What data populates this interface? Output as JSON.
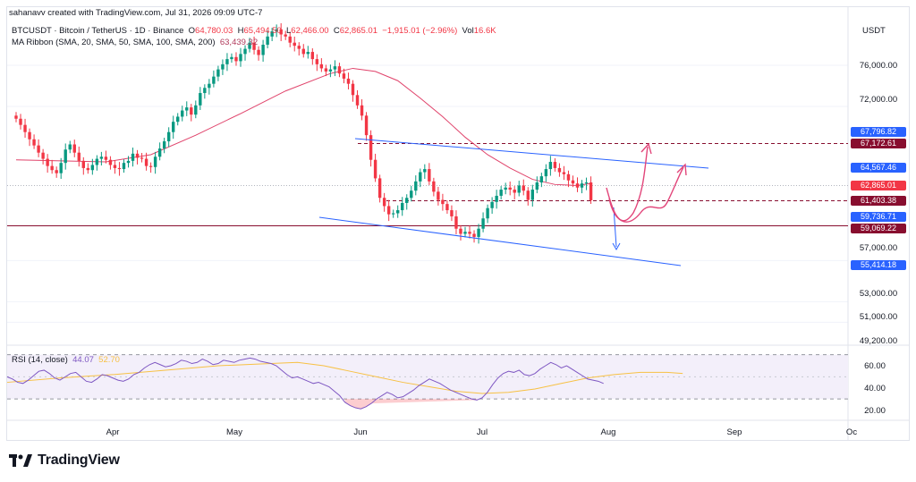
{
  "header": {
    "credit": "sahanavv created with TradingView.com, Jul 31, 2026 09:09 UTC-7",
    "symbol": "BTCUSDT · Bitcoin / TetherUS · 1D · Binance",
    "o_label": "O",
    "o_value": "64,780.03",
    "h_label": "H",
    "h_value": "65,494.50",
    "l_label": "L",
    "l_value": "62,466.00",
    "c_label": "C",
    "c_value": "62,865.01",
    "change": "−1,915.01 (−2.96%)",
    "vol_label": "Vol",
    "vol_value": "16.6K",
    "ma_title": "MA Ribbon (SMA, 20, SMA, 50, SMA, 100, SMA, 200)",
    "ma_value": "63,439.32"
  },
  "currency": "USDT",
  "price_axis": [
    "76,000.00",
    "72,000.00",
    "57,000.00",
    "53,000.00",
    "51,000.00",
    "49,200.00"
  ],
  "price_labels": [
    {
      "text": "67,796.82",
      "color": "#2962ff"
    },
    {
      "text": "67,172.61",
      "color": "#880e2f"
    },
    {
      "text": "64,567.46",
      "color": "#2962ff"
    },
    {
      "text": "62,865.01",
      "color": "#f23645"
    },
    {
      "text": "61,403.38",
      "color": "#880e2f"
    },
    {
      "text": "59,736.71",
      "color": "#2962ff"
    },
    {
      "text": "59,069.22",
      "color": "#880e2f"
    },
    {
      "text": "55,414.18",
      "color": "#2962ff"
    }
  ],
  "months": [
    "Apr",
    "May",
    "Jun",
    "Jul",
    "Aug",
    "Sep",
    "Oc"
  ],
  "rsi": {
    "title": "RSI (14, close)",
    "value": "44.07",
    "ma_value": "52.70",
    "axis": [
      "60.00",
      "40.00",
      "20.00"
    ]
  },
  "brand": "TradingView",
  "colors": {
    "up": "#089981",
    "down": "#f23645",
    "trendline": "#2962ff",
    "ma": "#e0436b",
    "forecast": "#e2457a",
    "rsi": "#7e57c2",
    "rsi_ma": "#f7c144",
    "level": "#880e2f"
  },
  "chart_data": [
    {
      "type": "candlestick",
      "title": "BTCUSDT · Bitcoin / TetherUS · 1D · Binance",
      "x_range": [
        "2026-03-09",
        "2026-10-01"
      ],
      "ylim": [
        48500,
        80500
      ],
      "closes": [
        70800,
        70200,
        69500,
        68800,
        68200,
        67500,
        66900,
        66200,
        65800,
        65500,
        66500,
        67800,
        68300,
        67500,
        66700,
        66000,
        65800,
        66300,
        66900,
        67100,
        66800,
        66300,
        66000,
        65900,
        66500,
        66700,
        67400,
        67000,
        66900,
        66200,
        66100,
        67100,
        67900,
        68600,
        69500,
        70500,
        71000,
        71600,
        71900,
        71200,
        72100,
        73300,
        73800,
        74200,
        74900,
        75600,
        76100,
        76600,
        76800,
        76400,
        77100,
        77600,
        78200,
        77500,
        77000,
        78000,
        78800,
        79300,
        79500,
        79000,
        78800,
        78200,
        77900,
        77600,
        77100,
        77300,
        76600,
        76100,
        75700,
        75400,
        75600,
        75900,
        75200,
        74700,
        74200,
        73100,
        72100,
        71100,
        69200,
        66800,
        65000,
        63100,
        62300,
        61500,
        61600,
        61900,
        62600,
        63100,
        63800,
        64700,
        65600,
        65900,
        64700,
        63700,
        62900,
        62500,
        61900,
        61300,
        60100,
        59600,
        59800,
        59600,
        59300,
        60100,
        61100,
        62100,
        62700,
        63300,
        63900,
        64100,
        63900,
        63600,
        64300,
        63800,
        62900,
        63900,
        64600,
        65200,
        65900,
        66600,
        66000,
        65600,
        65400,
        64800,
        64500,
        64100,
        64500,
        64600,
        62865
      ],
      "ma_line": [
        [
          0,
          66800
        ],
        [
          10,
          66700
        ],
        [
          20,
          66600
        ],
        [
          30,
          67300
        ],
        [
          40,
          69200
        ],
        [
          50,
          71300
        ],
        [
          60,
          73500
        ],
        [
          70,
          75200
        ],
        [
          75,
          75700
        ],
        [
          80,
          75400
        ],
        [
          85,
          74500
        ],
        [
          90,
          72800
        ],
        [
          95,
          71000
        ],
        [
          100,
          69000
        ],
        [
          105,
          67300
        ],
        [
          110,
          66000
        ],
        [
          115,
          64900
        ],
        [
          120,
          64400
        ],
        [
          125,
          64300
        ],
        [
          128,
          64500
        ]
      ],
      "rsi": [
        50,
        48,
        45,
        44,
        47,
        51,
        55,
        56,
        53,
        49,
        47,
        50,
        53,
        54,
        50,
        46,
        45,
        48,
        52,
        51,
        49,
        47,
        46,
        48,
        52,
        54,
        58,
        61,
        63,
        61,
        59,
        60,
        62,
        65,
        64,
        62,
        63,
        66,
        64,
        61,
        62,
        65,
        64,
        63,
        65,
        66,
        67,
        66,
        64,
        63,
        62,
        60,
        56,
        52,
        49,
        50,
        48,
        46,
        44,
        45,
        43,
        41,
        37,
        33,
        27,
        24,
        22,
        21,
        23,
        26,
        30,
        33,
        36,
        34,
        31,
        32,
        35,
        38,
        42,
        45,
        48,
        46,
        44,
        41,
        38,
        36,
        34,
        32,
        30,
        29,
        31,
        36,
        43,
        49,
        53,
        55,
        54,
        56,
        52,
        51,
        53,
        57,
        60,
        63,
        61,
        58,
        60,
        57,
        54,
        51,
        48,
        47,
        46,
        44
      ],
      "rsi_ma": [
        [
          0,
          45
        ],
        [
          10,
          49
        ],
        [
          20,
          52
        ],
        [
          30,
          56
        ],
        [
          40,
          60
        ],
        [
          50,
          62
        ],
        [
          55,
          63
        ],
        [
          60,
          60
        ],
        [
          65,
          55
        ],
        [
          70,
          50
        ],
        [
          75,
          45
        ],
        [
          80,
          41
        ],
        [
          85,
          37
        ],
        [
          90,
          35
        ],
        [
          95,
          36
        ],
        [
          100,
          39
        ],
        [
          105,
          44
        ],
        [
          110,
          49
        ],
        [
          115,
          52
        ],
        [
          120,
          54
        ],
        [
          125,
          54
        ],
        [
          128,
          53
        ]
      ]
    }
  ]
}
